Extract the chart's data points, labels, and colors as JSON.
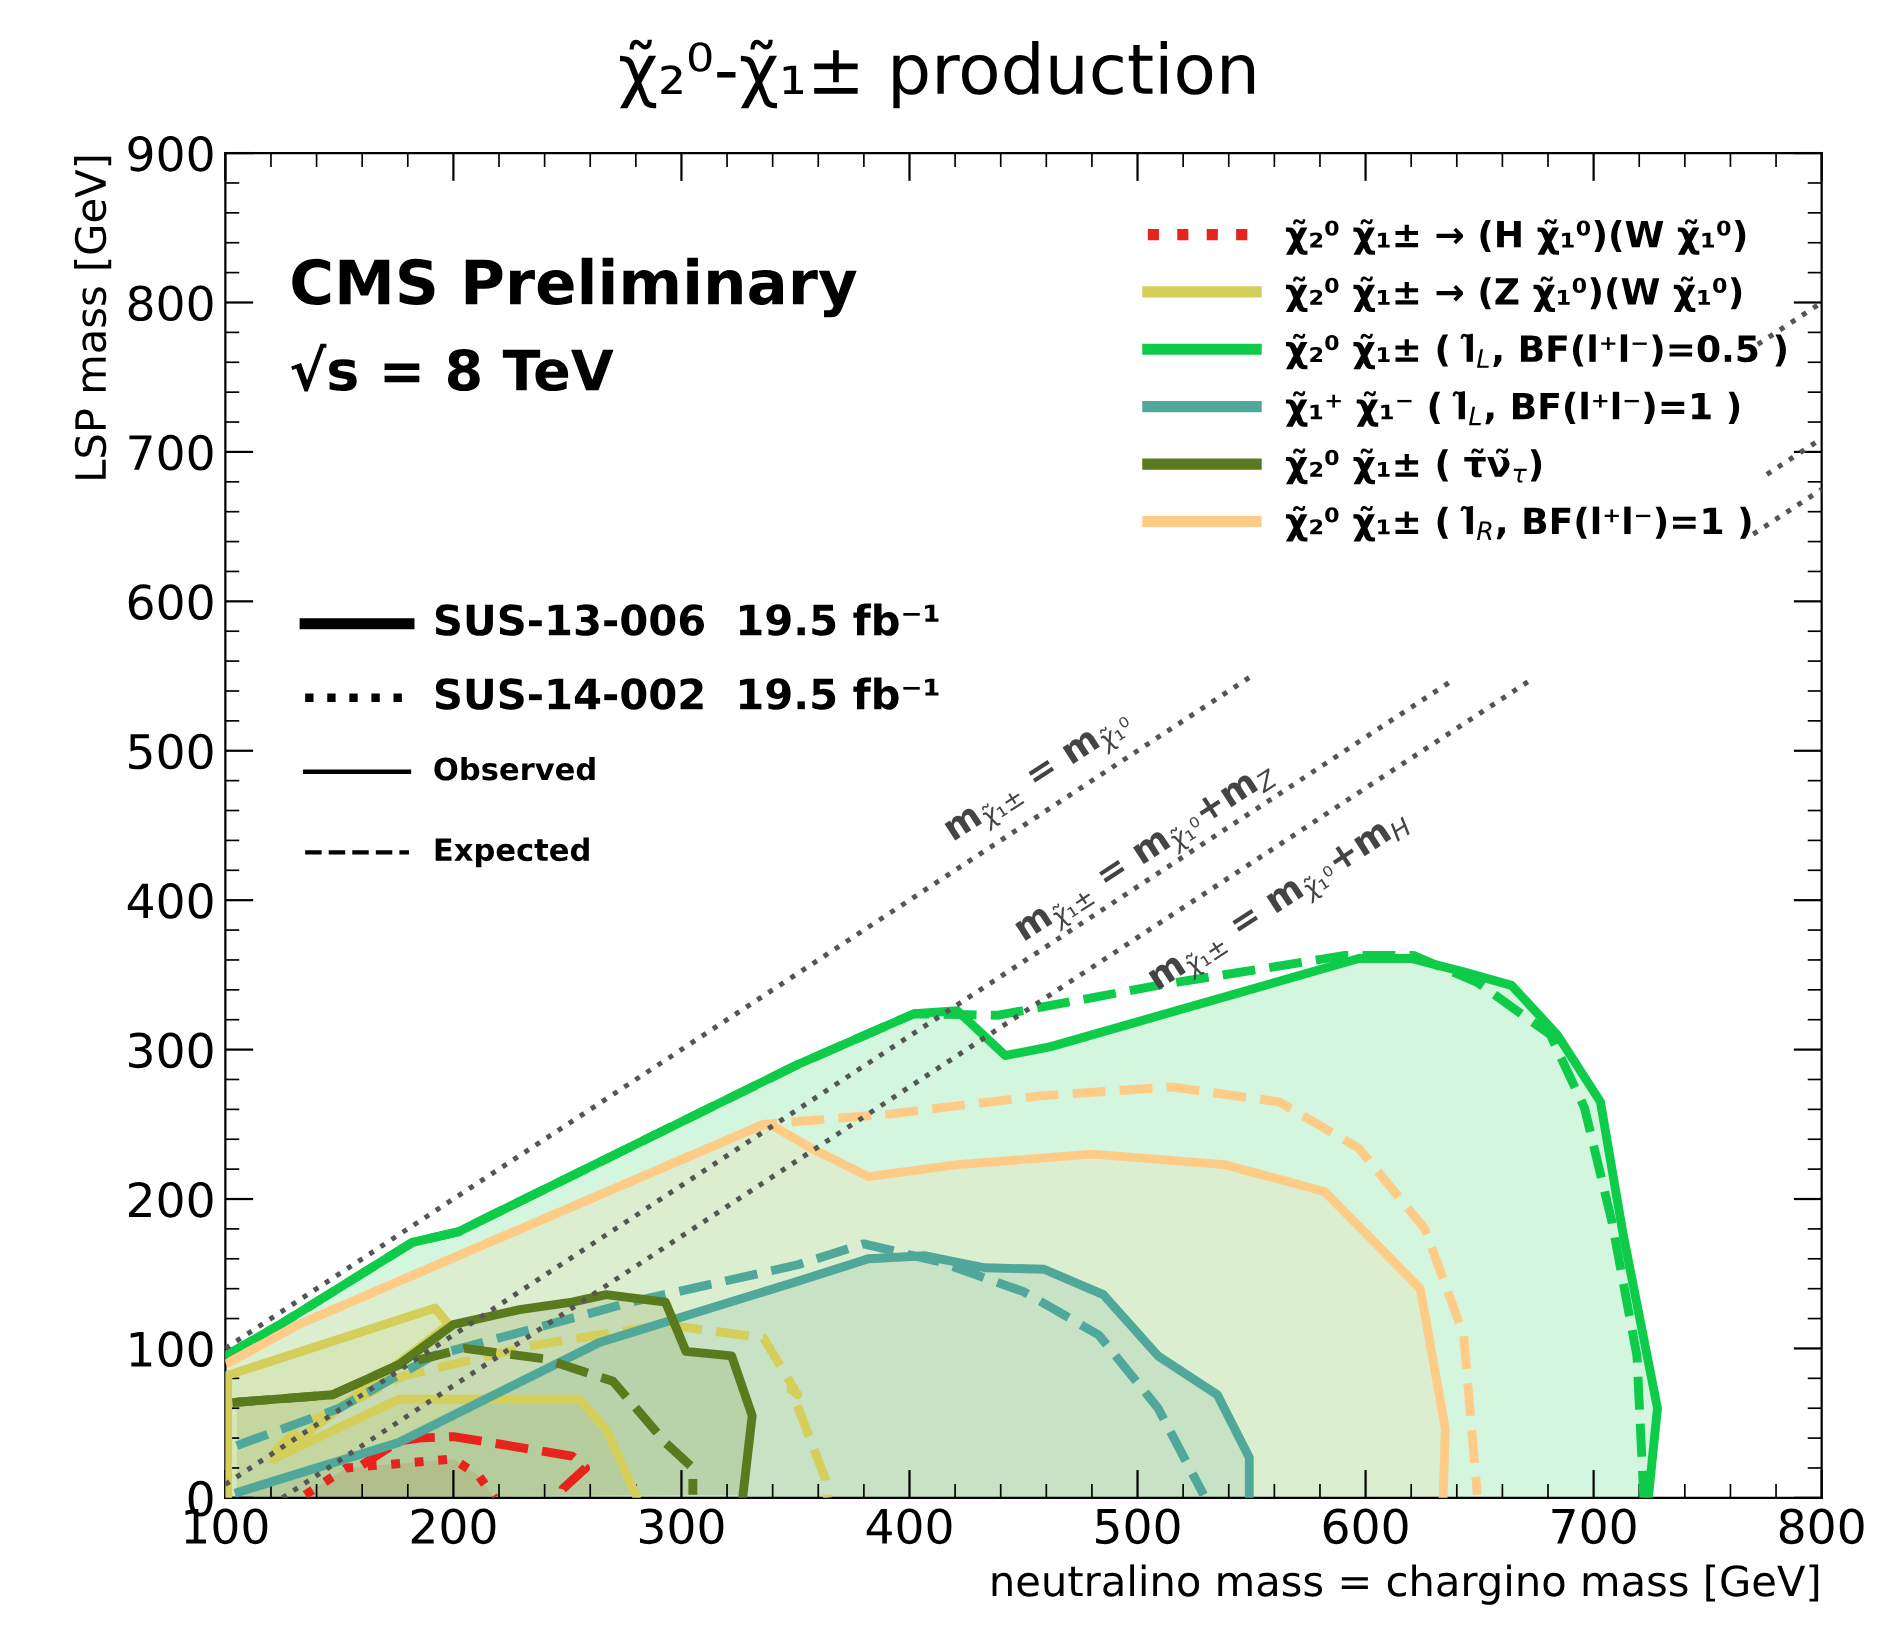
{
  "chart_data": {
    "type": "line",
    "title": "χ̃₂⁰-χ̃₁± production",
    "xlabel": "neutralino mass = chargino mass [GeV]",
    "ylabel": "LSP mass [GeV]",
    "xlim": [
      100,
      800
    ],
    "ylim": [
      0,
      900
    ],
    "xticks": [
      100,
      200,
      300,
      400,
      500,
      600,
      700,
      800
    ],
    "yticks": [
      0,
      100,
      200,
      300,
      400,
      500,
      600,
      700,
      800,
      900
    ],
    "grid": false,
    "legend": "top right",
    "series": [
      {
        "name": "χ̃₂⁰ χ̃₁± → (H χ̃₁⁰)(W χ̃₁⁰)",
        "color": "#e8231b",
        "line_style": "dotted",
        "x": [
          135,
          153,
          200,
          211,
          218
        ],
        "values": [
          2,
          20,
          26,
          15,
          0
        ]
      },
      {
        "color": "#e8231b",
        "line_style": "dashed",
        "x": [
          160,
          176,
          185,
          200,
          252,
          258,
          248,
          247
        ],
        "values": [
          22,
          38,
          40,
          41,
          28,
          20,
          6,
          0
        ]
      },
      {
        "name": "χ̃₂⁰ χ̃₁± → (Z χ̃₁⁰)(W χ̃₁⁰)",
        "color": "#d4cf5a",
        "line_style": "solid",
        "x": [
          101,
          101,
          192,
          198,
          121,
          176,
          255,
          267,
          280
        ],
        "values": [
          0,
          82,
          127,
          116,
          26,
          66,
          66,
          46,
          2
        ]
      },
      {
        "color": "#d4cf5a",
        "line_style": "dashed",
        "x": [
          121,
          132,
          179,
          235,
          293,
          336,
          351,
          348,
          363,
          364
        ],
        "values": [
          30,
          47,
          82,
          102,
          116,
          107,
          69,
          73,
          13,
          0
        ]
      },
      {
        "name": "χ̃₂⁰ χ̃₁± ( l̃$_{L}$, BF(l⁺l⁻)=0.5 )",
        "color": "#0ecb4a",
        "line_style": "solid",
        "x": [
          100,
          124,
          182,
          202,
          351,
          402,
          421,
          442,
          462,
          597,
          620,
          643,
          664,
          684,
          703,
          713,
          728,
          724
        ],
        "values": [
          95,
          116,
          171,
          178,
          290,
          324,
          326,
          296,
          302,
          361,
          361,
          352,
          343,
          310,
          265,
          176,
          60,
          0
        ]
      },
      {
        "color": "#0ecb4a",
        "line_style": "dashed",
        "x": [
          100,
          124,
          182,
          202,
          351,
          402,
          439,
          509,
          591,
          621,
          649,
          681,
          696,
          708,
          719,
          722
        ],
        "values": [
          95,
          116,
          171,
          178,
          290,
          324,
          323,
          343,
          363,
          363,
          345,
          310,
          261,
          185,
          95,
          0
        ]
      },
      {
        "name": "χ̃₁⁺ χ̃₁⁻ ( l̃$_{L}$, BF(l⁺l⁻)=1 )",
        "color": "#4fa89a",
        "line_style": "solid",
        "x": [
          106,
          176,
          264,
          351,
          382,
          407,
          433,
          459,
          485,
          509,
          535,
          549,
          549
        ],
        "values": [
          4,
          37,
          104,
          145,
          160,
          162,
          154,
          153,
          136,
          95,
          69,
          27,
          0
        ]
      },
      {
        "color": "#4fa89a",
        "line_style": "dashed",
        "x": [
          105,
          150,
          191,
          278,
          351,
          380,
          413,
          450,
          483,
          509,
          529
        ],
        "values": [
          35,
          60,
          95,
          131,
          156,
          170,
          158,
          138,
          109,
          60,
          2
        ]
      },
      {
        "name": "χ̃₂⁰ χ̃₁± ( τ̃ν̃$_{τ}$)",
        "color": "#5a7a1e",
        "line_style": "solid",
        "x": [
          105,
          147,
          176,
          200,
          229,
          252,
          267,
          293,
          302,
          322,
          331,
          327
        ],
        "values": [
          64,
          69,
          89,
          116,
          126,
          131,
          136,
          131,
          98,
          95,
          55,
          2
        ]
      },
      {
        "color": "#5a7a1e",
        "line_style": "dashed",
        "x": [
          105,
          147,
          176,
          205,
          240,
          270,
          293,
          305,
          305
        ],
        "values": [
          64,
          69,
          89,
          100,
          93,
          78,
          37,
          20,
          2
        ]
      },
      {
        "name": "χ̃₂⁰ χ̃₁± ( l̃$_{R}$, BF(l⁺l⁻)=1 )",
        "color": "#ffcc88",
        "line_style": "solid",
        "x": [
          102,
          132,
          336,
          340,
          357,
          382,
          421,
          480,
          538,
          582,
          624,
          635,
          634
        ],
        "values": [
          91,
          116,
          250,
          249,
          234,
          215,
          223,
          230,
          223,
          205,
          140,
          46,
          0
        ]
      },
      {
        "color": "#ffcc88",
        "line_style": "dashed",
        "x": [
          102,
          132,
          336,
          392,
          457,
          515,
          562,
          597,
          626,
          643,
          649
        ],
        "values": [
          91,
          116,
          250,
          257,
          269,
          275,
          265,
          234,
          180,
          109,
          2
        ]
      },
      {
        "color": "#555555",
        "line_style": "dotted",
        "x": [
          100,
          549,
          660,
          772,
          800
        ],
        "values": [
          100,
          549,
          null,
          772,
          800
        ]
      },
      {
        "color": "#555555",
        "line_style": "dotted",
        "x": [
          100,
          637,
          700,
          776,
          800
        ],
        "values": [
          9,
          546,
          null,
          685,
          709
        ]
      },
      {
        "color": "#555555",
        "line_style": "dotted",
        "x": [
          125,
          672,
          720,
          770,
          800
        ],
        "values": [
          0,
          547,
          null,
          645,
          675
        ]
      }
    ],
    "annotations": [
      "CMS Preliminary",
      "√s = 8 TeV",
      "SUS-13-006  19.5 fb⁻¹",
      "SUS-14-002  19.5 fb⁻¹",
      "Observed",
      "Expected",
      "m$_{χ̃₁±}$ = m$_{χ̃₁⁰}$",
      "m$_{χ̃₁±}$ = m$_{χ̃₁⁰}$+m$_{Z}$",
      "m$_{χ̃₁±}$ = m$_{χ̃₁⁰}$+m$_{H}$"
    ]
  }
}
